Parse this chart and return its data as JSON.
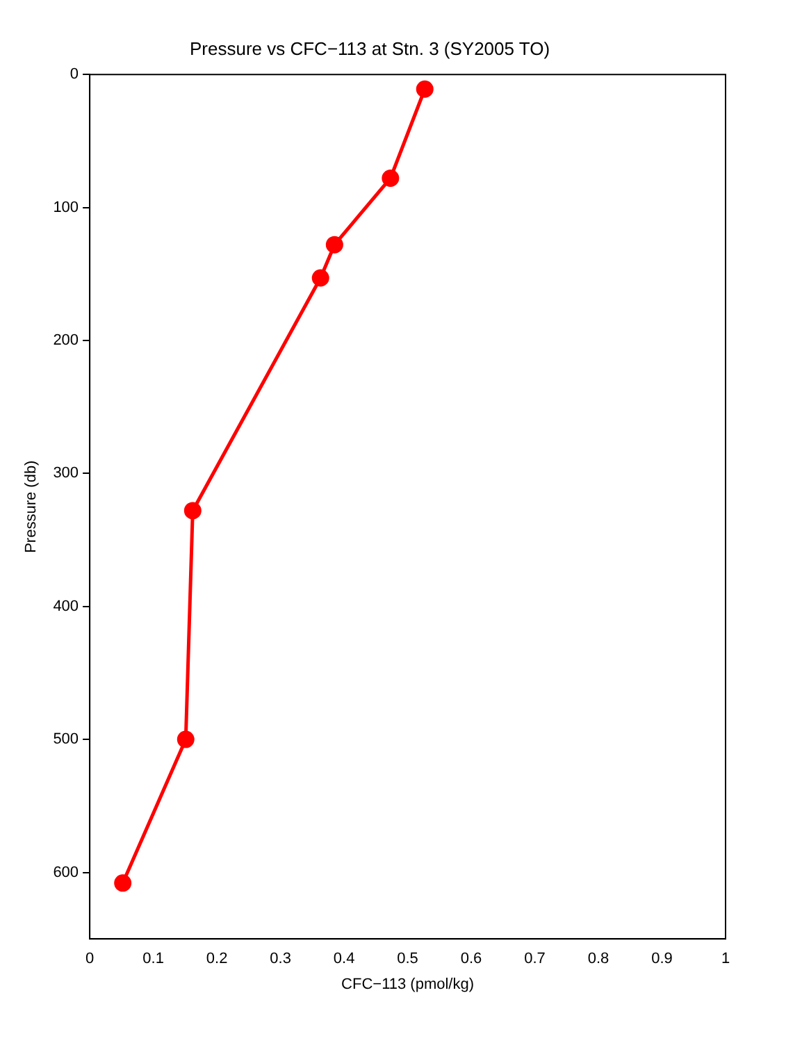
{
  "chart_data": {
    "type": "line",
    "title": "Pressure vs CFC−113 at Stn. 3 (SY2005 TO)",
    "xlabel": "CFC−113 (pmol/kg)",
    "ylabel": "Pressure (db)",
    "series": [
      {
        "color": "#ff0000",
        "x": [
          0.527,
          0.473,
          0.385,
          0.363,
          0.162,
          0.151,
          0.052
        ],
        "values": [
          11,
          78,
          128,
          153,
          328,
          500,
          608
        ]
      }
    ],
    "xlim": [
      0,
      1
    ],
    "xticks": [
      0,
      0.1,
      0.2,
      0.3,
      0.4,
      0.5,
      0.6,
      0.7,
      0.8,
      0.9,
      1
    ],
    "ylim": [
      650,
      0
    ],
    "yticks": [
      0,
      100,
      200,
      300,
      400,
      500,
      600
    ],
    "grid": false,
    "legend": false,
    "marker": "circle",
    "line_style": "solid"
  }
}
